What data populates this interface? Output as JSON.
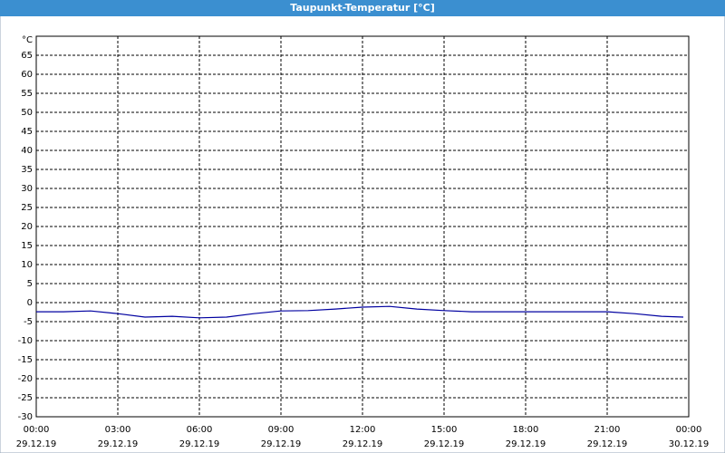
{
  "chart_data": {
    "type": "line",
    "title": "Taupunkt-Temperatur [°C]",
    "y_label": "°C",
    "x": [
      0,
      1,
      2,
      3,
      4,
      5,
      6,
      7,
      8,
      9,
      10,
      11,
      12,
      13,
      14,
      15,
      16,
      17,
      18,
      19,
      20,
      21,
      22,
      23,
      23.8
    ],
    "series": [
      {
        "name": "Taupunkt",
        "color": "#0000a0",
        "values": [
          -2.4,
          -2.4,
          -2.2,
          -2.9,
          -3.8,
          -3.6,
          -4.0,
          -3.8,
          -2.9,
          -2.2,
          -2.1,
          -1.7,
          -1.2,
          -1.0,
          -1.7,
          -2.1,
          -2.4,
          -2.4,
          -2.4,
          -2.4,
          -2.4,
          -2.4,
          -2.9,
          -3.6,
          -3.8
        ]
      }
    ],
    "xlim": [
      0,
      24
    ],
    "xticks": [
      {
        "value": 0,
        "label": "00:00"
      },
      {
        "value": 3,
        "label": "03:00"
      },
      {
        "value": 6,
        "label": "06:00"
      },
      {
        "value": 9,
        "label": "09:00"
      },
      {
        "value": 12,
        "label": "12:00"
      },
      {
        "value": 15,
        "label": "15:00"
      },
      {
        "value": 18,
        "label": "18:00"
      },
      {
        "value": 21,
        "label": "21:00"
      },
      {
        "value": 24,
        "label": "00:00"
      }
    ],
    "xtick_dates": [
      "29.12.19",
      "29.12.19",
      "29.12.19",
      "29.12.19",
      "29.12.19",
      "29.12.19",
      "29.12.19",
      "29.12.19",
      "30.12.19"
    ],
    "ylim": [
      -30,
      70
    ],
    "yticks": [
      -30,
      -25,
      -20,
      -15,
      -10,
      -5,
      0,
      5,
      10,
      15,
      20,
      25,
      30,
      35,
      40,
      45,
      50,
      55,
      60,
      65
    ],
    "grid": true
  }
}
